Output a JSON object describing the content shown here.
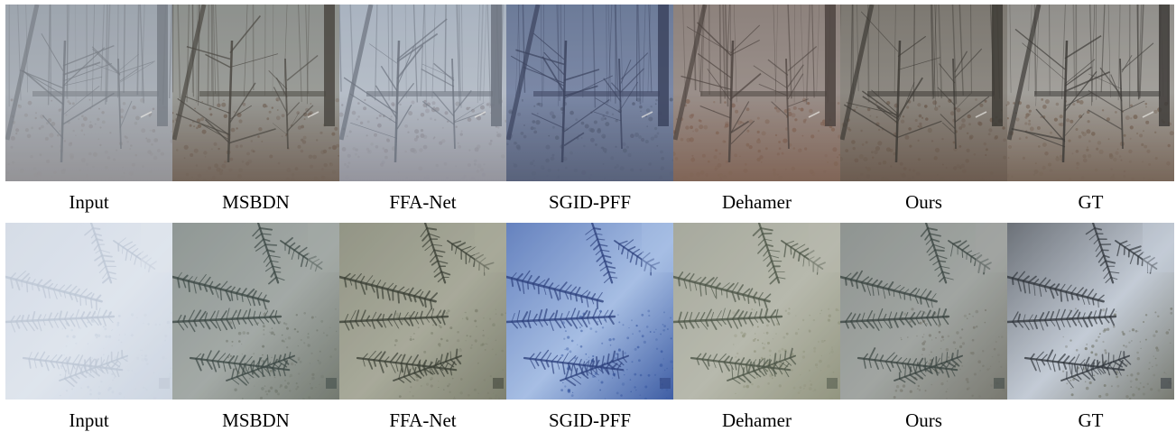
{
  "figure": {
    "rows": [
      {
        "scene": "forest",
        "captions": [
          "Input",
          "MSBDN",
          "FFA-Net",
          "SGID-PFF",
          "Dehamer",
          "Ours",
          "GT"
        ],
        "tiles": [
          {
            "method": "Input",
            "palette": {
              "sky": "#9ba3ad",
              "ground": "#8f8d90",
              "trunk": "#6f747c",
              "haze": "#aab0b8"
            }
          },
          {
            "method": "MSBDN",
            "palette": {
              "sky": "#8b8f8c",
              "ground": "#6b5a4e",
              "trunk": "#3a3630",
              "haze": "#9a9c98"
            }
          },
          {
            "method": "FFA-Net",
            "palette": {
              "sky": "#a7b2bf",
              "ground": "#8d8c94",
              "trunk": "#5d6470",
              "haze": "#b6bec8"
            }
          },
          {
            "method": "SGID-PFF",
            "palette": {
              "sky": "#6a7896",
              "ground": "#525a72",
              "trunk": "#2f3550",
              "haze": "#7c88a6"
            }
          },
          {
            "method": "Dehamer",
            "palette": {
              "sky": "#8a7f7a",
              "ground": "#7b5c4c",
              "trunk": "#3d3430",
              "haze": "#9a8f8a"
            }
          },
          {
            "method": "Ours",
            "palette": {
              "sky": "#7a756f",
              "ground": "#665246",
              "trunk": "#2e2a26",
              "haze": "#8d8882"
            }
          },
          {
            "method": "GT",
            "palette": {
              "sky": "#8e8c88",
              "ground": "#6f5a4b",
              "trunk": "#2a2724",
              "haze": "#a3a09b"
            }
          }
        ]
      },
      {
        "scene": "spruce",
        "captions": [
          "Input",
          "MSBDN",
          "FFA-Net",
          "SGID-PFF",
          "Dehamer",
          "Ours",
          "GT"
        ],
        "tiles": [
          {
            "method": "Input",
            "palette": {
              "sky": "#d4dbe6",
              "ground": "#c9d2df",
              "trunk": "#b9c3d2",
              "haze": "#dfe5ee"
            }
          },
          {
            "method": "MSBDN",
            "palette": {
              "sky": "#8d9592",
              "ground": "#6c7267",
              "trunk": "#2d3a36",
              "haze": "#a4aaa6"
            }
          },
          {
            "method": "FFA-Net",
            "palette": {
              "sky": "#8f9282",
              "ground": "#777a68",
              "trunk": "#2a3026",
              "haze": "#a8aa9a"
            }
          },
          {
            "method": "SGID-PFF",
            "palette": {
              "sky": "#5a78b8",
              "ground": "#2c4d99",
              "trunk": "#1b2f6e",
              "haze": "#a7bfe4"
            }
          },
          {
            "method": "Dehamer",
            "palette": {
              "sky": "#a4a69b",
              "ground": "#8d8f78",
              "trunk": "#3d4638",
              "haze": "#b8b9ad"
            }
          },
          {
            "method": "Ours",
            "palette": {
              "sky": "#8c918f",
              "ground": "#727168",
              "trunk": "#2c3734",
              "haze": "#a1a5a2"
            }
          },
          {
            "method": "GT",
            "palette": {
              "sky": "#5d6268",
              "ground": "#6b6d60",
              "trunk": "#1c2126",
              "haze": "#c4ccd6"
            }
          }
        ]
      }
    ]
  }
}
